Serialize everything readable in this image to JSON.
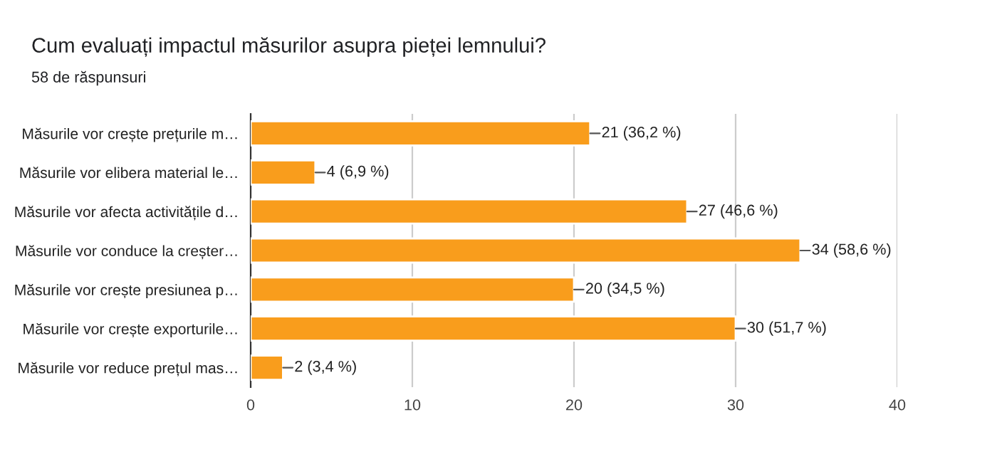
{
  "chart_data": {
    "type": "bar",
    "orientation": "horizontal",
    "title": "Cum evaluați impactul măsurilor asupra pieței lemnului?",
    "subtitle": "58 de răspunsuri",
    "categories": [
      "Măsurile vor crește prețurile m…",
      "Măsurile vor elibera material le…",
      "Măsurile vor afecta activitățile d…",
      "Măsurile vor conduce la creșter…",
      "Măsurile vor crește presiunea p…",
      "Măsurile vor crește exporturile…",
      "Măsurile vor reduce prețul mas…"
    ],
    "values": [
      21,
      4,
      27,
      34,
      20,
      30,
      2
    ],
    "value_labels": [
      "21 (36,2 %)",
      "4 (6,9 %)",
      "27 (46,6 %)",
      "34 (58,6 %)",
      "20 (34,5 %)",
      "30 (51,7 %)",
      "2 (3,4 %)"
    ],
    "color": "#f99d1c",
    "xlim": [
      0,
      40
    ],
    "xticks": [
      0,
      10,
      20,
      30,
      40
    ],
    "grid": "x"
  }
}
